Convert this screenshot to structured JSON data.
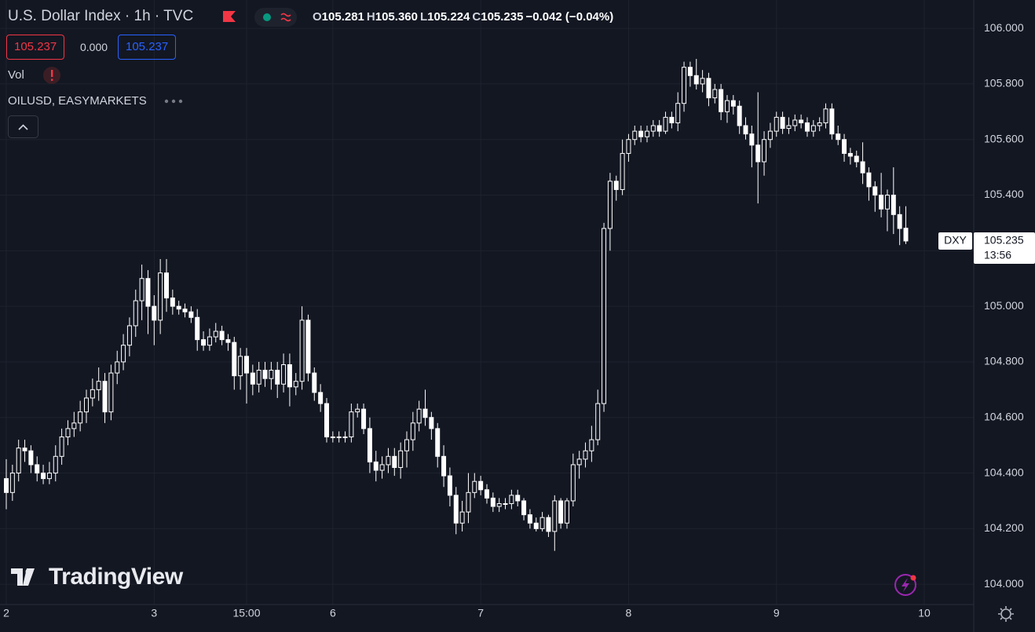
{
  "header": {
    "title": "U.S. Dollar Index · 1h · TVC",
    "ohlc": [
      {
        "label": "O",
        "value": "105.281"
      },
      {
        "label": "H",
        "value": "105.360"
      },
      {
        "label": "L",
        "value": "105.224"
      },
      {
        "label": "C",
        "value": "105.235"
      }
    ],
    "change": "−0.042 (−0.04%)",
    "sell_price": "105.237",
    "spread": "0.000",
    "buy_price": "105.237",
    "volume_label": "Vol",
    "overlay_label": "OILUSD, EASYMARKETS"
  },
  "watermark": "TradingView",
  "chart_data": {
    "type": "candlestick",
    "symbol": "DXY",
    "countdown": "13:56",
    "color": "#ffffff",
    "hollow_up": true,
    "grid": true,
    "ylim": [
      103.927,
      106.102
    ],
    "yticks": [
      {
        "value": 104,
        "label": "104.000"
      },
      {
        "value": 104.2,
        "label": "104.200"
      },
      {
        "value": 104.4,
        "label": "104.400"
      },
      {
        "value": 104.6,
        "label": "104.600"
      },
      {
        "value": 104.8,
        "label": "104.800"
      },
      {
        "value": 105,
        "label": "105.000"
      },
      {
        "value": 105.2,
        "label": "105.200"
      },
      {
        "value": 105.4,
        "label": "105.400"
      },
      {
        "value": 105.6,
        "label": "105.600"
      },
      {
        "value": 105.8,
        "label": "105.800"
      },
      {
        "value": 106,
        "label": "106.000"
      }
    ],
    "categories": [
      "2",
      null,
      null,
      null,
      null,
      null,
      null,
      null,
      null,
      null,
      null,
      null,
      null,
      null,
      null,
      null,
      null,
      null,
      null,
      null,
      null,
      null,
      null,
      null,
      "3",
      null,
      null,
      null,
      null,
      null,
      null,
      null,
      null,
      null,
      null,
      null,
      null,
      null,
      null,
      "15:00",
      null,
      null,
      null,
      null,
      null,
      null,
      null,
      null,
      null,
      null,
      null,
      null,
      null,
      "6",
      null,
      null,
      null,
      null,
      null,
      null,
      null,
      null,
      null,
      null,
      null,
      null,
      null,
      null,
      null,
      null,
      null,
      null,
      null,
      null,
      null,
      null,
      null,
      "7",
      null,
      null,
      null,
      null,
      null,
      null,
      null,
      null,
      null,
      null,
      null,
      null,
      null,
      null,
      null,
      null,
      null,
      null,
      null,
      null,
      null,
      null,
      null,
      "8",
      null,
      null,
      null,
      null,
      null,
      null,
      null,
      null,
      null,
      null,
      null,
      null,
      null,
      null,
      null,
      null,
      null,
      null,
      null,
      null,
      null,
      null,
      null,
      "9",
      null,
      null,
      null,
      null,
      null,
      null,
      null,
      null,
      null,
      null,
      null,
      null,
      null,
      null,
      null,
      null,
      null,
      null,
      null,
      null,
      null,
      null,
      null,
      "10",
      null,
      null,
      null,
      null,
      null,
      null,
      null
    ],
    "open": [
      104.38,
      104.33,
      104.4,
      104.49,
      104.48,
      104.43,
      104.4,
      104.38,
      104.4,
      104.46,
      104.53,
      104.56,
      104.58,
      104.62,
      104.67,
      104.7,
      104.73,
      104.62,
      104.76,
      104.8,
      104.86,
      104.93,
      105.02,
      105.1,
      105.0,
      104.95,
      105.12,
      105.03,
      105.0,
      104.99,
      104.98,
      104.96,
      104.88,
      104.86,
      104.89,
      104.91,
      104.88,
      104.87,
      104.75,
      104.82,
      104.76,
      104.72,
      104.77,
      104.74,
      104.77,
      104.72,
      104.79,
      104.71,
      104.73,
      104.95,
      104.76,
      104.69,
      104.65,
      104.53,
      104.53,
      104.53,
      104.53,
      104.62,
      104.63,
      104.56,
      104.44,
      104.41,
      104.43,
      104.46,
      104.42,
      104.48,
      104.52,
      104.58,
      104.63,
      104.6,
      104.56,
      104.46,
      104.39,
      104.32,
      104.22,
      104.26,
      104.33,
      104.37,
      104.34,
      104.31,
      104.28,
      104.29,
      104.29,
      104.32,
      104.3,
      104.25,
      104.22,
      104.2,
      104.24,
      104.19,
      104.3,
      104.22,
      104.3,
      104.43,
      104.45,
      104.48,
      104.52,
      104.65,
      105.28,
      105.45,
      105.42,
      105.55,
      105.6,
      105.63,
      105.61,
      105.63,
      105.65,
      105.63,
      105.68,
      105.66,
      105.73,
      105.86,
      105.83,
      105.8,
      105.82,
      105.75,
      105.78,
      105.7,
      105.74,
      105.72,
      105.65,
      105.62,
      105.58,
      105.52,
      105.6,
      105.63,
      105.68,
      105.64,
      105.65,
      105.67,
      105.66,
      105.63,
      105.65,
      105.66,
      105.71,
      105.62,
      105.6,
      105.55,
      105.54,
      105.52,
      105.48,
      105.43,
      105.4,
      105.35,
      105.4,
      105.33,
      105.281,
      null,
      null,
      null,
      null,
      null,
      null,
      null,
      null,
      null,
      null
    ],
    "high": [
      104.45,
      104.43,
      104.52,
      104.52,
      104.5,
      104.46,
      104.43,
      104.44,
      104.5,
      104.56,
      104.59,
      104.62,
      104.66,
      104.7,
      104.74,
      104.78,
      104.76,
      104.79,
      104.84,
      104.9,
      104.96,
      105.06,
      105.15,
      105.13,
      105.04,
      105.17,
      105.17,
      105.06,
      105.02,
      105.01,
      105.0,
      104.99,
      104.91,
      104.92,
      104.94,
      104.93,
      104.9,
      104.89,
      104.85,
      104.85,
      104.79,
      104.8,
      104.8,
      104.8,
      104.8,
      104.83,
      104.83,
      104.76,
      105.0,
      104.97,
      104.78,
      104.72,
      104.67,
      104.55,
      104.55,
      104.55,
      104.65,
      104.65,
      104.65,
      104.6,
      104.48,
      104.46,
      104.49,
      104.49,
      104.51,
      104.55,
      104.62,
      104.66,
      104.7,
      104.62,
      104.58,
      104.5,
      104.42,
      104.35,
      104.3,
      104.4,
      104.4,
      104.39,
      104.36,
      104.33,
      104.31,
      104.31,
      104.34,
      104.34,
      104.31,
      104.27,
      104.24,
      104.26,
      104.25,
      104.32,
      104.31,
      104.31,
      104.47,
      104.48,
      104.51,
      104.57,
      104.7,
      105.3,
      105.48,
      105.47,
      105.6,
      105.62,
      105.65,
      105.65,
      105.65,
      105.67,
      105.67,
      105.7,
      105.7,
      105.77,
      105.88,
      105.88,
      105.89,
      105.85,
      105.84,
      105.8,
      105.8,
      105.76,
      105.76,
      105.74,
      105.68,
      105.65,
      105.77,
      105.63,
      105.66,
      105.7,
      105.7,
      105.68,
      105.69,
      105.69,
      105.68,
      105.67,
      105.68,
      105.73,
      105.73,
      105.65,
      105.62,
      105.57,
      105.56,
      105.59,
      105.5,
      105.45,
      105.48,
      105.42,
      105.5,
      105.36,
      105.36,
      null,
      null,
      null,
      null,
      null,
      null,
      null,
      null,
      null,
      null
    ],
    "low": [
      104.27,
      104.3,
      104.37,
      104.44,
      104.4,
      104.37,
      104.36,
      104.36,
      104.37,
      104.43,
      104.5,
      104.53,
      104.55,
      104.58,
      104.64,
      104.66,
      104.58,
      104.59,
      104.72,
      104.77,
      104.82,
      104.89,
      104.95,
      104.9,
      104.86,
      104.9,
      104.98,
      104.97,
      104.97,
      104.96,
      104.94,
      104.84,
      104.84,
      104.84,
      104.87,
      104.86,
      104.84,
      104.7,
      104.7,
      104.65,
      104.68,
      104.69,
      104.71,
      104.7,
      104.67,
      104.69,
      104.64,
      104.68,
      104.7,
      104.73,
      104.66,
      104.62,
      104.51,
      104.51,
      104.51,
      104.51,
      104.51,
      104.6,
      104.54,
      104.4,
      104.37,
      104.38,
      104.4,
      104.39,
      104.38,
      104.42,
      104.48,
      104.55,
      104.57,
      104.52,
      104.42,
      104.35,
      104.28,
      104.18,
      104.19,
      104.22,
      104.31,
      104.32,
      104.29,
      104.26,
      104.26,
      104.27,
      104.27,
      104.28,
      104.23,
      104.2,
      104.19,
      104.19,
      104.17,
      104.12,
      104.2,
      104.2,
      104.28,
      104.38,
      104.42,
      104.44,
      104.5,
      104.62,
      105.2,
      105.38,
      105.4,
      105.52,
      105.58,
      105.59,
      105.59,
      105.61,
      105.61,
      105.62,
      105.64,
      105.63,
      105.7,
      105.79,
      105.78,
      105.77,
      105.72,
      105.73,
      105.67,
      105.66,
      105.69,
      105.62,
      105.6,
      105.5,
      105.37,
      105.47,
      105.57,
      105.61,
      105.62,
      105.62,
      105.63,
      105.64,
      105.61,
      105.61,
      105.63,
      105.64,
      105.6,
      105.58,
      105.52,
      105.51,
      105.5,
      105.44,
      105.38,
      105.34,
      105.32,
      105.27,
      105.26,
      105.22,
      105.224,
      null,
      null,
      null,
      null,
      null,
      null,
      null,
      null,
      null,
      null
    ],
    "close": [
      104.33,
      104.4,
      104.49,
      104.48,
      104.43,
      104.4,
      104.38,
      104.4,
      104.46,
      104.53,
      104.56,
      104.58,
      104.62,
      104.67,
      104.7,
      104.73,
      104.62,
      104.76,
      104.8,
      104.86,
      104.93,
      105.02,
      105.1,
      105.0,
      104.95,
      105.12,
      105.03,
      105.0,
      104.99,
      104.98,
      104.96,
      104.88,
      104.86,
      104.89,
      104.91,
      104.88,
      104.87,
      104.75,
      104.82,
      104.76,
      104.72,
      104.77,
      104.74,
      104.77,
      104.72,
      104.79,
      104.71,
      104.73,
      104.95,
      104.76,
      104.69,
      104.65,
      104.53,
      104.53,
      104.53,
      104.53,
      104.62,
      104.63,
      104.56,
      104.44,
      104.41,
      104.43,
      104.46,
      104.42,
      104.48,
      104.52,
      104.58,
      104.63,
      104.6,
      104.56,
      104.46,
      104.39,
      104.32,
      104.22,
      104.26,
      104.33,
      104.37,
      104.34,
      104.31,
      104.28,
      104.29,
      104.29,
      104.32,
      104.3,
      104.25,
      104.22,
      104.2,
      104.24,
      104.19,
      104.3,
      104.22,
      104.3,
      104.43,
      104.45,
      104.48,
      104.52,
      104.65,
      105.28,
      105.45,
      105.42,
      105.55,
      105.6,
      105.63,
      105.61,
      105.63,
      105.65,
      105.63,
      105.68,
      105.66,
      105.73,
      105.86,
      105.83,
      105.8,
      105.82,
      105.75,
      105.78,
      105.7,
      105.74,
      105.72,
      105.65,
      105.62,
      105.58,
      105.52,
      105.6,
      105.63,
      105.68,
      105.64,
      105.65,
      105.67,
      105.66,
      105.63,
      105.65,
      105.66,
      105.71,
      105.62,
      105.6,
      105.55,
      105.54,
      105.52,
      105.48,
      105.43,
      105.4,
      105.35,
      105.4,
      105.33,
      105.28,
      105.235,
      null,
      null,
      null,
      null,
      null,
      null,
      null,
      null,
      null,
      null
    ]
  }
}
